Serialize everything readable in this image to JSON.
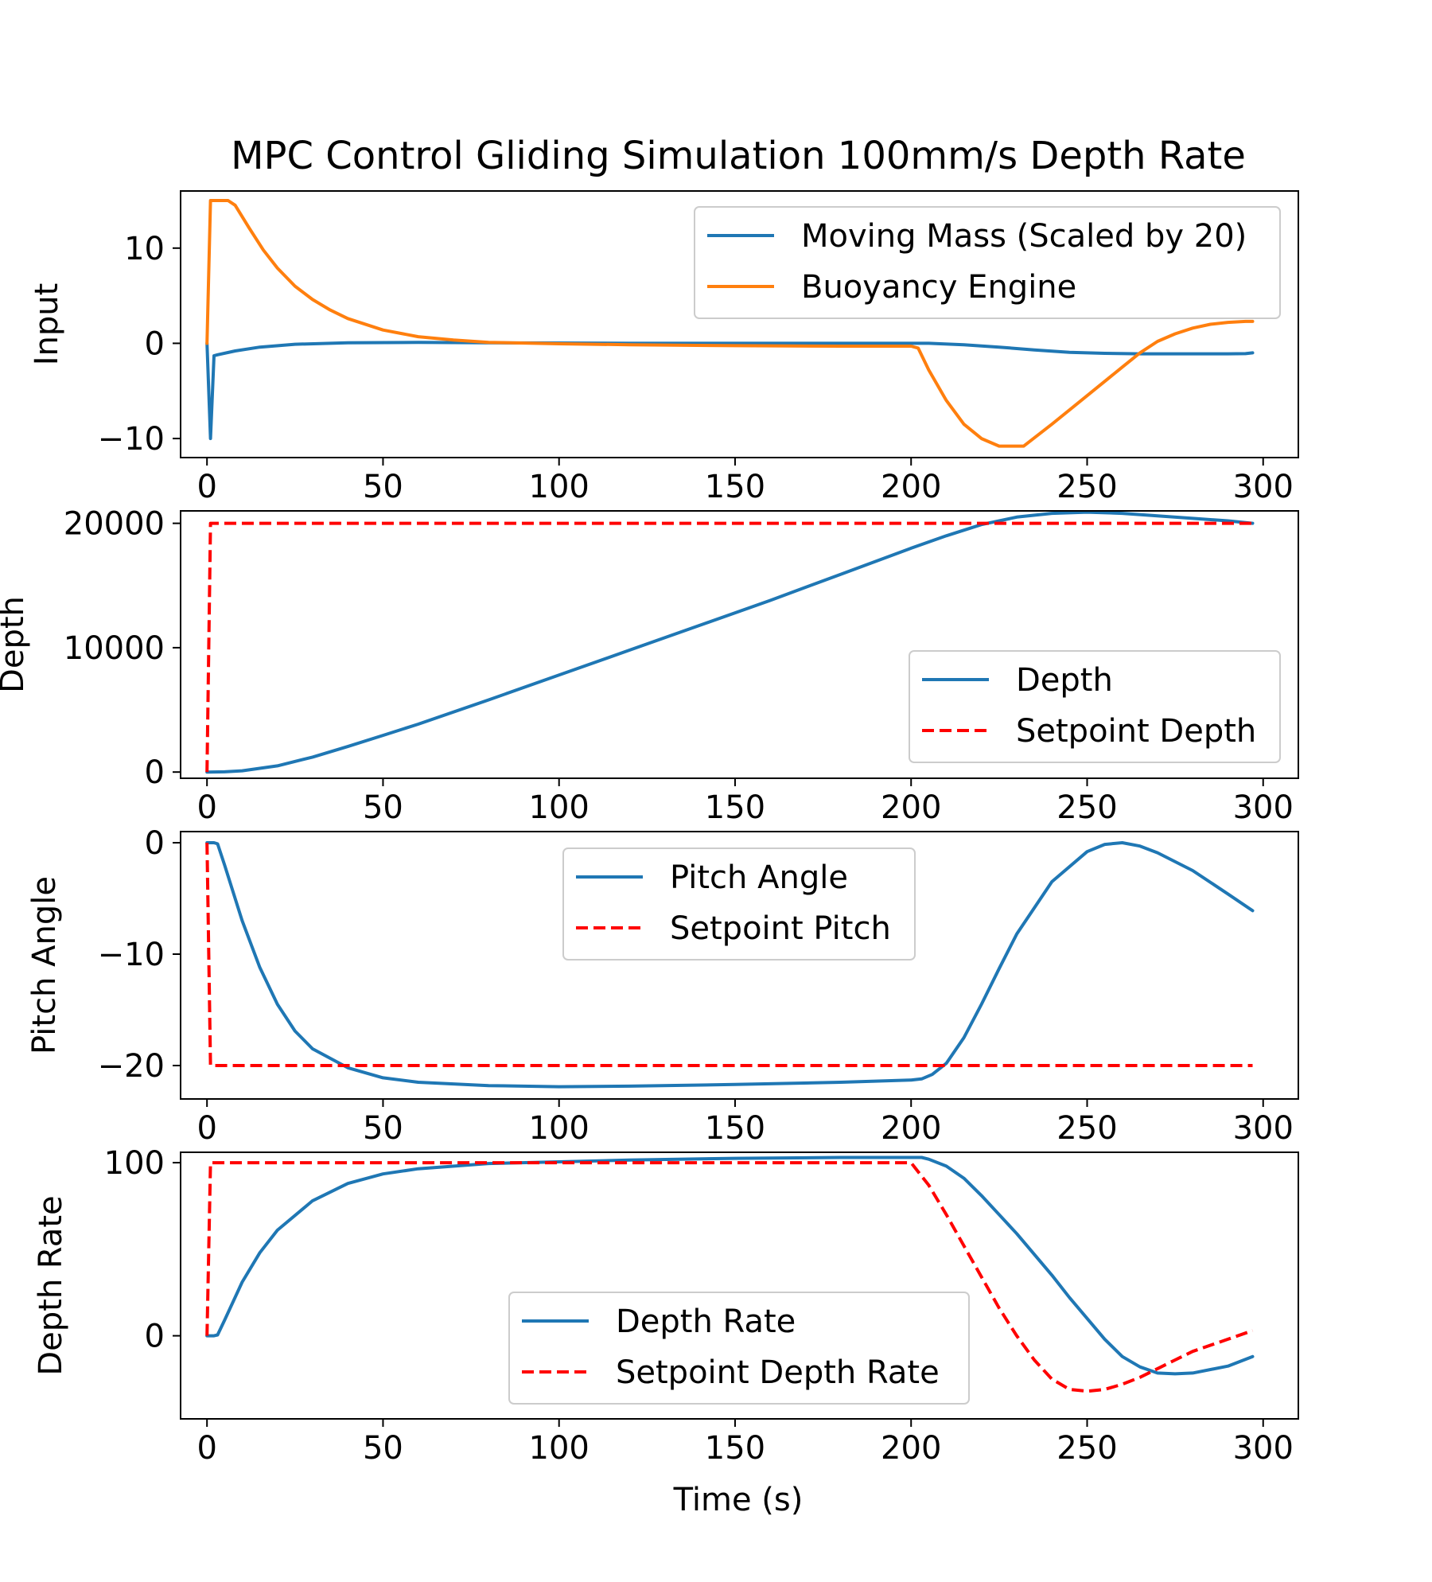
{
  "figure": {
    "title": "MPC Control Gliding Simulation 100mm/s Depth Rate",
    "xlabel": "Time (s)"
  },
  "colors": {
    "blue": "#1f77b4",
    "orange": "#ff7f0e",
    "red": "#ff0000",
    "axes": "#000000",
    "legend_border": "#cccccc"
  },
  "chart_data": [
    {
      "type": "line",
      "ylabel": "Input",
      "xlim": [
        -7.5,
        310
      ],
      "ylim": [
        -12,
        16
      ],
      "xticks": [
        0,
        50,
        100,
        150,
        200,
        250,
        300
      ],
      "yticks": [
        -10,
        0,
        10
      ],
      "ytick_labels": [
        "−10",
        "0",
        "10"
      ],
      "legend": "top-right",
      "series": [
        {
          "name": "Moving Mass (Scaled by 20)",
          "color": "blue",
          "style": "solid",
          "x": [
            0,
            1,
            2,
            3,
            8,
            15,
            25,
            40,
            60,
            80,
            120,
            160,
            200,
            205,
            215,
            225,
            235,
            245,
            255,
            265,
            275,
            285,
            290,
            295,
            297
          ],
          "y": [
            0,
            -10,
            -1.3,
            -1.2,
            -0.8,
            -0.4,
            -0.1,
            0.05,
            0.1,
            0.05,
            0,
            0,
            0,
            0,
            -0.15,
            -0.4,
            -0.7,
            -0.95,
            -1.05,
            -1.1,
            -1.1,
            -1.1,
            -1.1,
            -1.08,
            -1.0
          ]
        },
        {
          "name": "Buoyancy Engine",
          "color": "orange",
          "style": "solid",
          "x": [
            0,
            1,
            2,
            4,
            6,
            8,
            12,
            16,
            20,
            25,
            30,
            35,
            40,
            50,
            60,
            70,
            80,
            100,
            120,
            150,
            180,
            200,
            202,
            205,
            210,
            215,
            220,
            225,
            230,
            232,
            240,
            250,
            260,
            265,
            270,
            275,
            280,
            285,
            290,
            295,
            297
          ],
          "y": [
            0,
            15,
            15,
            15,
            15,
            14.5,
            12.1,
            9.8,
            7.9,
            6.0,
            4.6,
            3.5,
            2.6,
            1.4,
            0.7,
            0.35,
            0.1,
            -0.05,
            -0.15,
            -0.25,
            -0.3,
            -0.3,
            -0.5,
            -2.8,
            -6.0,
            -8.5,
            -10.0,
            -10.8,
            -10.8,
            -10.8,
            -8.5,
            -5.5,
            -2.5,
            -1.0,
            0.2,
            1.0,
            1.6,
            2.0,
            2.2,
            2.3,
            2.3
          ]
        }
      ]
    },
    {
      "type": "line",
      "ylabel": "Depth",
      "xlim": [
        -7.5,
        310
      ],
      "ylim": [
        -500,
        21000
      ],
      "xticks": [
        0,
        50,
        100,
        150,
        200,
        250,
        300
      ],
      "yticks": [
        0,
        10000,
        20000
      ],
      "ytick_labels": [
        "0",
        "10000",
        "20000"
      ],
      "legend": "lower-right",
      "series": [
        {
          "name": "Depth",
          "color": "blue",
          "style": "solid",
          "x": [
            0,
            5,
            10,
            20,
            30,
            40,
            50,
            60,
            80,
            100,
            120,
            140,
            160,
            180,
            200,
            210,
            220,
            230,
            240,
            250,
            260,
            270,
            280,
            290,
            297
          ],
          "y": [
            0,
            20,
            100,
            500,
            1200,
            2050,
            2950,
            3850,
            5800,
            7800,
            9800,
            11800,
            13800,
            15900,
            18000,
            19000,
            19900,
            20500,
            20800,
            20900,
            20800,
            20600,
            20400,
            20200,
            20000
          ]
        },
        {
          "name": "Setpoint Depth",
          "color": "red",
          "style": "dashed",
          "x": [
            0,
            1,
            297
          ],
          "y": [
            0,
            20000,
            20000
          ]
        }
      ]
    },
    {
      "type": "line",
      "ylabel": "Pitch Angle",
      "xlim": [
        -7.5,
        310
      ],
      "ylim": [
        -23,
        1
      ],
      "xticks": [
        0,
        50,
        100,
        150,
        200,
        250,
        300
      ],
      "yticks": [
        -20,
        -10,
        0
      ],
      "ytick_labels": [
        "−20",
        "−10",
        "0"
      ],
      "legend": "top-center",
      "series": [
        {
          "name": "Pitch Angle",
          "color": "blue",
          "style": "solid",
          "x": [
            0,
            2,
            3,
            5,
            10,
            15,
            20,
            25,
            30,
            40,
            50,
            60,
            80,
            100,
            120,
            150,
            180,
            200,
            203,
            206,
            210,
            215,
            220,
            225,
            230,
            240,
            250,
            255,
            260,
            265,
            270,
            280,
            290,
            297
          ],
          "y": [
            0,
            0,
            -0.1,
            -2,
            -7,
            -11.2,
            -14.5,
            -16.9,
            -18.5,
            -20.2,
            -21.1,
            -21.5,
            -21.8,
            -21.9,
            -21.85,
            -21.7,
            -21.5,
            -21.3,
            -21.2,
            -20.8,
            -19.8,
            -17.5,
            -14.5,
            -11.3,
            -8.2,
            -3.5,
            -0.8,
            -0.15,
            0,
            -0.3,
            -0.9,
            -2.5,
            -4.6,
            -6.1
          ]
        },
        {
          "name": "Setpoint Pitch",
          "color": "red",
          "style": "dashed",
          "x": [
            0,
            1,
            297
          ],
          "y": [
            0,
            -20,
            -20
          ]
        }
      ]
    },
    {
      "type": "line",
      "ylabel": "Depth Rate",
      "xlim": [
        -7.5,
        310
      ],
      "ylim": [
        -48,
        106
      ],
      "xticks": [
        0,
        50,
        100,
        150,
        200,
        250,
        300
      ],
      "yticks": [
        0,
        100
      ],
      "ytick_labels": [
        "0",
        "100"
      ],
      "legend": "lower-center",
      "series": [
        {
          "name": "Depth Rate",
          "color": "blue",
          "style": "solid",
          "x": [
            0,
            2,
            3,
            5,
            10,
            15,
            20,
            30,
            40,
            50,
            60,
            80,
            100,
            120,
            150,
            180,
            200,
            203,
            205,
            210,
            215,
            220,
            225,
            230,
            235,
            240,
            245,
            250,
            255,
            260,
            265,
            270,
            275,
            280,
            290,
            297
          ],
          "y": [
            0,
            0,
            0.5,
            9,
            31,
            48,
            61,
            78,
            88,
            93.5,
            96.5,
            99.5,
            100.5,
            101.5,
            102.5,
            103,
            103,
            103,
            102,
            98,
            91,
            81,
            70,
            59,
            47,
            35,
            22,
            10,
            -2,
            -12,
            -18,
            -21.5,
            -22,
            -21.5,
            -17.5,
            -12
          ]
        },
        {
          "name": "Setpoint Depth Rate",
          "color": "red",
          "style": "dashed",
          "x": [
            0,
            1,
            200,
            205,
            210,
            215,
            220,
            225,
            230,
            235,
            240,
            245,
            250,
            255,
            260,
            265,
            270,
            275,
            280,
            290,
            297
          ],
          "y": [
            0,
            100,
            100,
            87,
            70,
            52,
            34,
            16,
            0,
            -14,
            -25,
            -31,
            -32,
            -31,
            -28,
            -24,
            -19,
            -14,
            -9,
            -2,
            3
          ]
        }
      ]
    }
  ]
}
